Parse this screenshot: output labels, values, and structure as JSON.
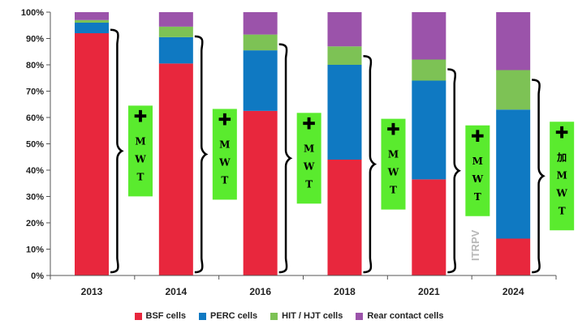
{
  "chart_data": {
    "type": "bar",
    "stacked": true,
    "categories": [
      "2013",
      "2014",
      "2016",
      "2018",
      "2021",
      "2024"
    ],
    "series": [
      {
        "name": "BSF cells",
        "color": "#e8273d",
        "values": [
          92,
          80.5,
          62.5,
          44,
          36.5,
          14
        ]
      },
      {
        "name": "PERC cells",
        "color": "#0f79c2",
        "values": [
          4,
          10,
          23,
          36,
          37.5,
          49
        ]
      },
      {
        "name": "HIT / HJT cells",
        "color": "#7dc255",
        "values": [
          1,
          4,
          6,
          7,
          8,
          15
        ]
      },
      {
        "name": "Rear contact cells",
        "color": "#9b53aa",
        "values": [
          3,
          5.5,
          8.5,
          13,
          18,
          22
        ]
      }
    ],
    "ylim": [
      0,
      100
    ],
    "yticks": [
      "0%",
      "10%",
      "20%",
      "30%",
      "40%",
      "50%",
      "60%",
      "70%",
      "80%",
      "90%",
      "100%"
    ],
    "legend_position": "bottom",
    "annotations": [
      {
        "category": "2013",
        "lines": [
          "✚",
          "M",
          "W",
          "T"
        ]
      },
      {
        "category": "2014",
        "lines": [
          "✚",
          "M",
          "W",
          "T"
        ]
      },
      {
        "category": "2016",
        "lines": [
          "✚",
          "M",
          "W",
          "T"
        ]
      },
      {
        "category": "2018",
        "lines": [
          "✚",
          "M",
          "W",
          "T"
        ]
      },
      {
        "category": "2021",
        "lines": [
          "✚",
          "M",
          "W",
          "T"
        ]
      },
      {
        "category": "2024",
        "lines": [
          "✚",
          "加",
          "M",
          "W",
          "T"
        ]
      }
    ],
    "annotation_color": "#5aeb2e",
    "watermark": "ITRPV"
  }
}
